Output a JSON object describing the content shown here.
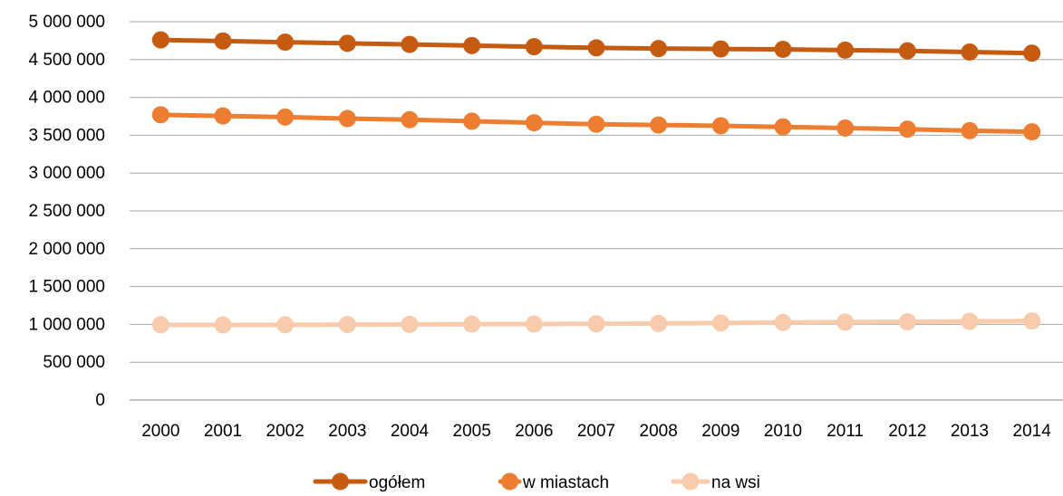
{
  "chart_data": {
    "type": "line",
    "title": "",
    "xlabel": "",
    "ylabel": "",
    "categories": [
      "2000",
      "2001",
      "2002",
      "2003",
      "2004",
      "2005",
      "2006",
      "2007",
      "2008",
      "2009",
      "2010",
      "2011",
      "2012",
      "2013",
      "2014"
    ],
    "ylim": [
      0,
      5000000
    ],
    "yticks": [
      0,
      500000,
      1000000,
      1500000,
      2000000,
      2500000,
      3000000,
      3500000,
      4000000,
      4500000,
      5000000
    ],
    "ytick_labels": [
      "0",
      "500 000",
      "1 000 000",
      "1 500 000",
      "2 000 000",
      "2 500 000",
      "3 000 000",
      "3 500 000",
      "4 000 000",
      "4 500 000",
      "5 000 000"
    ],
    "grid": true,
    "legend_position": "bottom",
    "series": [
      {
        "name": "ogółem",
        "color": "#C55A11",
        "values": [
          4760000,
          4745000,
          4730000,
          4715000,
          4700000,
          4685000,
          4670000,
          4655000,
          4645000,
          4640000,
          4635000,
          4625000,
          4615000,
          4600000,
          4585000
        ]
      },
      {
        "name": "w miastach",
        "color": "#ED7D31",
        "values": [
          3770000,
          3755000,
          3740000,
          3720000,
          3705000,
          3685000,
          3665000,
          3645000,
          3635000,
          3625000,
          3610000,
          3595000,
          3580000,
          3560000,
          3545000
        ]
      },
      {
        "name": "na wsi",
        "color": "#F8CBAD",
        "values": [
          995000,
          993000,
          995000,
          998000,
          1000000,
          1003000,
          1005000,
          1008000,
          1012000,
          1018000,
          1025000,
          1030000,
          1035000,
          1040000,
          1045000
        ]
      }
    ]
  }
}
